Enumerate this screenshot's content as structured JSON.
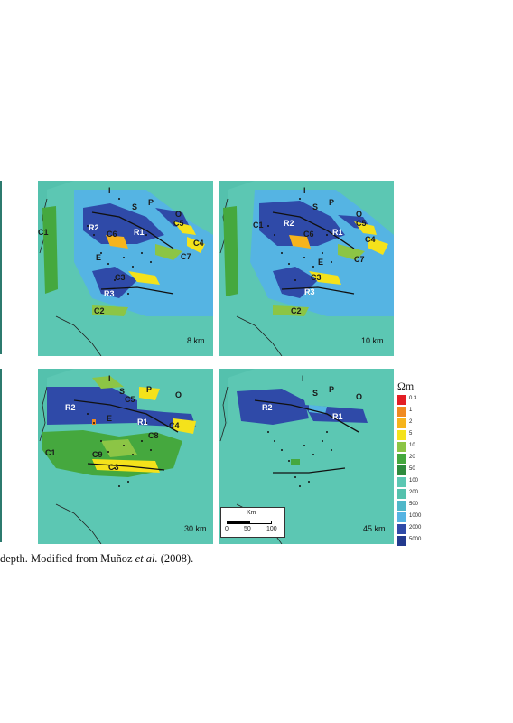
{
  "caption": {
    "text_before": "depth. Modified from Muñoz ",
    "et_al": "et al.",
    "text_after": " (2008)."
  },
  "colors": {
    "sea": "#54c1ad",
    "land": "#5cc7b3",
    "deep_blue": "#2f4aa8",
    "light_blue": "#55b4e3",
    "green": "#45a83e",
    "light_green": "#8cc545",
    "yellow": "#f4e21b",
    "orange": "#f08a20",
    "red": "#e31e24"
  },
  "panels": [
    {
      "depth": "8 km",
      "labels": [
        "I",
        "S",
        "P",
        "O",
        "C1",
        "R2",
        "C6",
        "R1",
        "C5",
        "C4",
        "C7",
        "E",
        "C3",
        "R3",
        "C2"
      ]
    },
    {
      "depth": "10 km",
      "labels": [
        "I",
        "S",
        "P",
        "O",
        "C1",
        "R2",
        "C6",
        "R1",
        "C5",
        "C4",
        "C7",
        "E",
        "C3",
        "R3",
        "C2"
      ]
    },
    {
      "depth": "30 km",
      "labels": [
        "I",
        "S",
        "C5",
        "P",
        "O",
        "R2",
        "E",
        "R1",
        "C4",
        "C8",
        "C1",
        "C9",
        "C3"
      ]
    },
    {
      "depth": "45 km",
      "labels": [
        "I",
        "S",
        "P",
        "O",
        "R2",
        "R1"
      ]
    }
  ],
  "legend": {
    "unit": "Ωm",
    "entries": [
      {
        "value": "0.3",
        "color": "#e31e24"
      },
      {
        "value": "1",
        "color": "#f08a20"
      },
      {
        "value": "2",
        "color": "#f6b41c"
      },
      {
        "value": "5",
        "color": "#f4e21b"
      },
      {
        "value": "10",
        "color": "#8cc545"
      },
      {
        "value": "20",
        "color": "#45a83e"
      },
      {
        "value": "50",
        "color": "#2e8b3d"
      },
      {
        "value": "100",
        "color": "#5cc7b3"
      },
      {
        "value": "200",
        "color": "#54c1ad"
      },
      {
        "value": "500",
        "color": "#4fb7c9"
      },
      {
        "value": "1000",
        "color": "#55b4e3"
      },
      {
        "value": "2000",
        "color": "#2f4aa8"
      },
      {
        "value": "5000",
        "color": "#233a8e"
      }
    ]
  },
  "scalebar": {
    "unit": "Km",
    "ticks": [
      "0",
      "50",
      "100"
    ]
  }
}
